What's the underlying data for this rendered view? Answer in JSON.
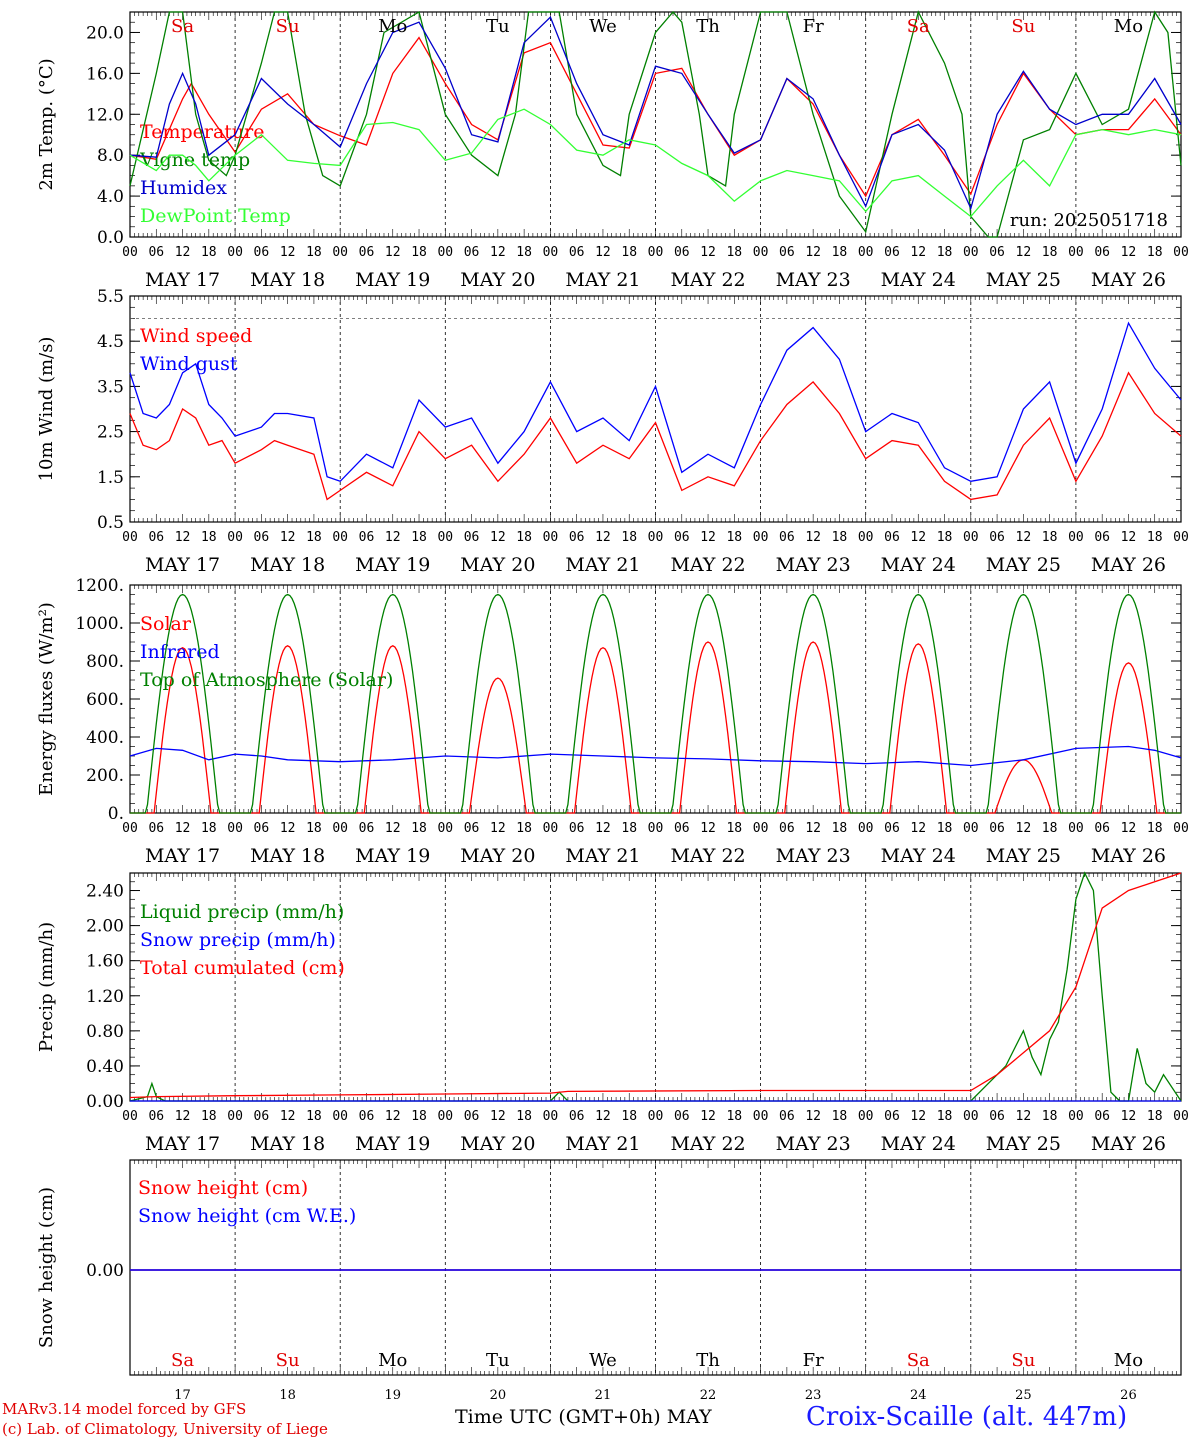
{
  "chart_data": [
    {
      "type": "line",
      "ylabel": "2m Temp. (°C)",
      "ylim": [
        0,
        22
      ],
      "yticks": [
        "0.0",
        "4.0",
        "8.0",
        "12.0",
        "16.0",
        "20.0"
      ],
      "day_names": [
        "Sa",
        "Su",
        "Mo",
        "Tu",
        "We",
        "Th",
        "Fr",
        "Sa",
        "Su",
        "Mo"
      ],
      "run_label": "run: 2025051718",
      "series": [
        {
          "name": "Temperature",
          "color": "#ff0000",
          "x": [
            0,
            6,
            12,
            14,
            18,
            24,
            30,
            36,
            42,
            48,
            54,
            60,
            66,
            72,
            78,
            84,
            90,
            96,
            102,
            108,
            114,
            120,
            126,
            132,
            138,
            144,
            150,
            156,
            162,
            168,
            174,
            180,
            186,
            192,
            198,
            204,
            210,
            216,
            222,
            228,
            234,
            240
          ],
          "values": [
            8,
            7.6,
            13.5,
            15,
            12,
            8.3,
            12.5,
            14,
            11,
            9.9,
            9,
            16,
            19.5,
            15,
            11,
            9.5,
            18,
            19,
            14,
            9,
            8.7,
            16,
            16.5,
            12,
            8,
            9.5,
            15.5,
            13,
            8,
            4,
            10,
            11.5,
            8,
            4.2,
            11,
            16,
            12.5,
            10,
            10.5,
            10.5,
            13.5,
            10
          ]
        },
        {
          "name": "Vigne temp",
          "color": "#008000",
          "x": [
            0,
            6,
            9,
            12,
            15,
            18,
            22,
            24,
            30,
            33,
            36,
            40,
            44,
            48,
            54,
            58,
            66,
            72,
            78,
            84,
            88,
            91,
            96,
            98,
            102,
            108,
            112,
            114,
            120,
            124,
            126,
            130,
            132,
            136,
            138,
            144,
            150,
            156,
            162,
            168,
            174,
            180,
            186,
            190,
            192,
            196,
            198,
            204,
            210,
            216,
            222,
            228,
            234,
            237,
            240
          ],
          "values": [
            5,
            16,
            22,
            22,
            12,
            7.5,
            6,
            8,
            17,
            22,
            22,
            12,
            6,
            5,
            12,
            20,
            22,
            12,
            8,
            6,
            12,
            22,
            22,
            22,
            12,
            7,
            6,
            12,
            20,
            22,
            21,
            12,
            6,
            5,
            12,
            22,
            22,
            12,
            4,
            0.5,
            12,
            22,
            17,
            12,
            2,
            0,
            0,
            9.5,
            10.5,
            16,
            11,
            12.5,
            22,
            20,
            7
          ]
        },
        {
          "name": "Humidex",
          "color": "#0000cc",
          "x": [
            0,
            6,
            9,
            12,
            15,
            18,
            24,
            30,
            36,
            42,
            48,
            54,
            60,
            66,
            72,
            78,
            84,
            90,
            96,
            102,
            108,
            114,
            120,
            126,
            132,
            138,
            144,
            150,
            156,
            162,
            168,
            174,
            180,
            186,
            192,
            198,
            204,
            210,
            216,
            222,
            228,
            234,
            240
          ],
          "values": [
            8,
            7.8,
            13,
            16,
            13,
            8,
            10,
            15.5,
            13,
            11,
            8.8,
            15,
            20,
            21,
            16.5,
            10,
            9.3,
            19,
            21.5,
            15,
            10,
            9,
            16.7,
            16,
            12,
            8.2,
            9.5,
            15.5,
            13.5,
            8,
            3,
            10,
            11,
            8.5,
            2.8,
            12,
            16.2,
            12.5,
            11,
            12,
            12,
            15.5,
            11
          ]
        },
        {
          "name": "DewPoint Temp",
          "color": "#33ff33",
          "x": [
            0,
            6,
            9,
            12,
            15,
            18,
            24,
            30,
            36,
            42,
            48,
            54,
            60,
            66,
            72,
            78,
            84,
            90,
            96,
            102,
            108,
            114,
            120,
            126,
            132,
            138,
            144,
            150,
            156,
            162,
            168,
            174,
            180,
            186,
            192,
            198,
            204,
            210,
            216,
            222,
            228,
            234,
            240
          ],
          "values": [
            8,
            6.5,
            8,
            8,
            7,
            5.5,
            8,
            10,
            7.5,
            7.2,
            7,
            11,
            11.2,
            10.5,
            7.5,
            8.2,
            11.5,
            12.5,
            11,
            8.5,
            8,
            9.5,
            9,
            7.2,
            6,
            3.5,
            5.5,
            6.5,
            6,
            5.5,
            2.5,
            5.5,
            6,
            4,
            2,
            5,
            7.5,
            5,
            10,
            10.5,
            10,
            10.5,
            10
          ]
        }
      ]
    },
    {
      "type": "line",
      "ylabel": "10m Wind (m/s)",
      "ylim": [
        0.5,
        5.5
      ],
      "yticks": [
        "0.5",
        "1.5",
        "2.5",
        "3.5",
        "4.5",
        "5.5"
      ],
      "ref_line": 5.0,
      "series": [
        {
          "name": "Wind speed",
          "color": "#ff0000",
          "x": [
            0,
            3,
            6,
            9,
            12,
            15,
            18,
            21,
            24,
            30,
            33,
            36,
            42,
            45,
            48,
            54,
            60,
            66,
            72,
            78,
            84,
            90,
            96,
            102,
            108,
            114,
            120,
            126,
            132,
            138,
            144,
            150,
            156,
            162,
            168,
            174,
            180,
            186,
            192,
            198,
            204,
            210,
            216,
            222,
            228,
            234,
            240
          ],
          "values": [
            2.9,
            2.2,
            2.1,
            2.3,
            3,
            2.8,
            2.2,
            2.3,
            1.8,
            2.1,
            2.3,
            2.2,
            2,
            1,
            1.2,
            1.6,
            1.3,
            2.5,
            1.9,
            2.2,
            1.4,
            2,
            2.8,
            1.8,
            2.2,
            1.9,
            2.7,
            1.2,
            1.5,
            1.3,
            2.3,
            3.1,
            3.6,
            2.9,
            1.9,
            2.3,
            2.2,
            1.4,
            1,
            1.1,
            2.2,
            2.8,
            1.4,
            2.4,
            3.8,
            2.9,
            2.4
          ]
        },
        {
          "name": "Wind gust",
          "color": "#0000ff",
          "x": [
            0,
            3,
            6,
            9,
            12,
            15,
            18,
            21,
            24,
            30,
            33,
            36,
            42,
            45,
            48,
            54,
            60,
            66,
            72,
            78,
            84,
            90,
            96,
            102,
            108,
            114,
            120,
            126,
            132,
            138,
            144,
            150,
            156,
            162,
            168,
            174,
            180,
            186,
            192,
            198,
            204,
            210,
            216,
            222,
            228,
            234,
            240
          ],
          "values": [
            3.8,
            2.9,
            2.8,
            3.1,
            3.8,
            4,
            3.1,
            2.8,
            2.4,
            2.6,
            2.9,
            2.9,
            2.8,
            1.5,
            1.4,
            2,
            1.7,
            3.2,
            2.6,
            2.8,
            1.8,
            2.5,
            3.6,
            2.5,
            2.8,
            2.3,
            3.5,
            1.6,
            2.0,
            1.7,
            3.1,
            4.3,
            4.8,
            4.1,
            2.5,
            2.9,
            2.7,
            1.7,
            1.4,
            1.5,
            3,
            3.6,
            1.8,
            3,
            4.9,
            3.9,
            3.2
          ]
        }
      ]
    },
    {
      "type": "line",
      "ylabel": "Energy fluxes (W/m²)",
      "ylim": [
        0,
        1200
      ],
      "yticks": [
        "0.",
        "200.",
        "400.",
        "600.",
        "800.",
        "1000.",
        "1200."
      ],
      "series": [
        {
          "name": "Solar",
          "color": "#ff0000",
          "peaks": [
            870,
            880,
            880,
            710,
            870,
            900,
            900,
            890,
            280,
            790
          ]
        },
        {
          "name": "Infrared",
          "color": "#0000ff",
          "x": [
            0,
            6,
            12,
            18,
            24,
            30,
            36,
            48,
            60,
            72,
            84,
            96,
            108,
            120,
            132,
            144,
            156,
            168,
            180,
            192,
            204,
            216,
            228,
            234,
            240
          ],
          "values": [
            300,
            340,
            330,
            280,
            310,
            300,
            280,
            270,
            280,
            300,
            290,
            310,
            300,
            290,
            285,
            275,
            270,
            260,
            270,
            250,
            280,
            340,
            350,
            330,
            290
          ]
        },
        {
          "name": "Top of Atmosphere (Solar)",
          "color": "#008000",
          "peaks": [
            1150,
            1150,
            1150,
            1150,
            1150,
            1150,
            1150,
            1150,
            1150,
            1150
          ]
        }
      ]
    },
    {
      "type": "line",
      "ylabel": "Precip (mm/h)",
      "ylim": [
        0,
        2.6
      ],
      "yticks": [
        "0.00",
        "0.40",
        "0.80",
        "1.20",
        "1.60",
        "2.00",
        "2.40"
      ],
      "series": [
        {
          "name": "Liquid precip (mm/h)",
          "color": "#008000",
          "x": [
            0,
            4,
            5,
            6,
            8,
            24,
            96,
            98,
            100,
            168,
            192,
            198,
            200,
            204,
            206,
            208,
            210,
            212,
            214,
            216,
            218,
            220,
            222,
            224,
            226,
            228,
            230,
            232,
            234,
            236,
            240
          ],
          "values": [
            0,
            0.05,
            0.2,
            0.05,
            0,
            0,
            0,
            0.1,
            0,
            0,
            0,
            0.3,
            0.4,
            0.8,
            0.5,
            0.3,
            0.7,
            0.9,
            1.5,
            2.3,
            2.6,
            2.4,
            1.2,
            0.1,
            0,
            0,
            0.6,
            0.2,
            0.1,
            0.3,
            0
          ]
        },
        {
          "name": "Snow precip (mm/h)",
          "color": "#0000ff",
          "x": [
            0,
            240
          ],
          "values": [
            0,
            0
          ]
        },
        {
          "name": "Total cumulated (cm)",
          "color": "#ff0000",
          "x": [
            0,
            6,
            24,
            48,
            72,
            96,
            100,
            144,
            192,
            198,
            204,
            210,
            216,
            222,
            228,
            234,
            240
          ],
          "values": [
            0.04,
            0.05,
            0.06,
            0.07,
            0.08,
            0.09,
            0.11,
            0.12,
            0.12,
            0.3,
            0.55,
            0.8,
            1.3,
            2.2,
            2.4,
            2.5,
            2.6
          ]
        }
      ]
    },
    {
      "type": "line",
      "ylabel": "Snow height (cm)",
      "yticks": [
        "0.00"
      ],
      "series": [
        {
          "name": "Snow height (cm)",
          "color": "#ff0000",
          "x": [
            0,
            240
          ],
          "values": [
            0,
            0
          ]
        },
        {
          "name": "Snow height (cm W.E.)",
          "color": "#0000ff",
          "x": [
            0,
            240
          ],
          "values": [
            0,
            0
          ]
        }
      ]
    }
  ],
  "xaxis": {
    "hour_ticks": [
      "00",
      "06",
      "12",
      "18"
    ],
    "days": [
      "MAY 17",
      "MAY 18",
      "MAY 19",
      "MAY 20",
      "MAY 21",
      "MAY 22",
      "MAY 23",
      "MAY 24",
      "MAY 25",
      "MAY 26"
    ],
    "day_numbers": [
      "17",
      "18",
      "19",
      "20",
      "21",
      "22",
      "23",
      "24",
      "25",
      "26"
    ],
    "title": "Time UTC (GMT+0h)",
    "month": "MAY"
  },
  "colors": {
    "weekend_day": "#e00000",
    "weekday": "#000000"
  },
  "credit_line1": "MARv3.14 model forced by GFS",
  "credit_line2": "(c) Lab. of Climatology, University of Liege",
  "station": "Croix-Scaille (alt. 447m)"
}
